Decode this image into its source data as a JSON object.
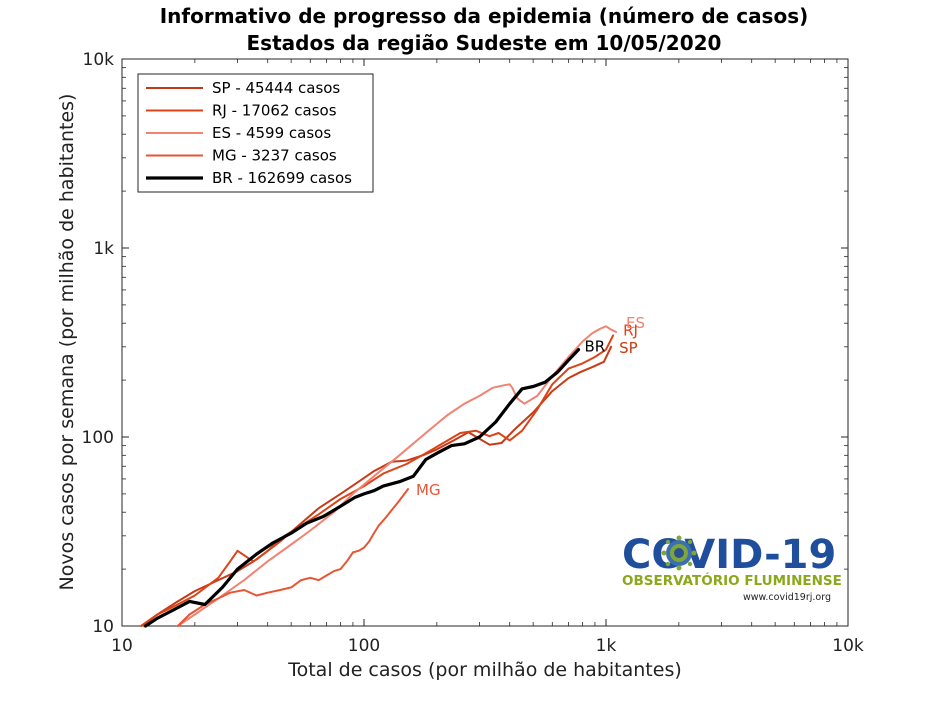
{
  "chart_data": {
    "type": "line",
    "title": "Informativo de progresso da epidemia (número de casos)",
    "subtitle": "Estados da região Sudeste em 10/05/2020",
    "xlabel": "Total de casos (por milhão de habitantes)",
    "ylabel": "Novos casos por semana (por milhão de habitantes)",
    "xscale": "log",
    "yscale": "log",
    "xlim": [
      10,
      10000
    ],
    "ylim": [
      10,
      10000
    ],
    "xticks": [
      10,
      100,
      1000,
      10000
    ],
    "xtick_labels": [
      "10",
      "100",
      "1k",
      "10k"
    ],
    "yticks": [
      10,
      100,
      1000,
      10000
    ],
    "ytick_labels": [
      "10",
      "100",
      "1k",
      "10k"
    ],
    "grid": false,
    "legend_position": "top-left",
    "series": [
      {
        "name": "SP - 45444 casos",
        "end_label": "SP",
        "color": "#c63b16",
        "points": [
          [
            12,
            10
          ],
          [
            14,
            11.5
          ],
          [
            17,
            13.5
          ],
          [
            20,
            15.3
          ],
          [
            25,
            17.5
          ],
          [
            30,
            19.5
          ],
          [
            36,
            22.5
          ],
          [
            45,
            28
          ],
          [
            55,
            35
          ],
          [
            65,
            42
          ],
          [
            80,
            50
          ],
          [
            95,
            58
          ],
          [
            110,
            66
          ],
          [
            130,
            74
          ],
          [
            150,
            75
          ],
          [
            175,
            80
          ],
          [
            200,
            86
          ],
          [
            235,
            96
          ],
          [
            270,
            106
          ],
          [
            300,
            98
          ],
          [
            330,
            91
          ],
          [
            370,
            93
          ],
          [
            420,
            110
          ],
          [
            500,
            135
          ],
          [
            600,
            175
          ],
          [
            700,
            205
          ],
          [
            780,
            220
          ],
          [
            880,
            235
          ],
          [
            980,
            250
          ],
          [
            1050,
            300
          ]
        ]
      },
      {
        "name": "RJ - 17062 casos",
        "end_label": "RJ",
        "color": "#dc4418",
        "points": [
          [
            12,
            10
          ],
          [
            14,
            11.5
          ],
          [
            16,
            12.5
          ],
          [
            20,
            14.5
          ],
          [
            25,
            18
          ],
          [
            28,
            22
          ],
          [
            30,
            25
          ],
          [
            33,
            23
          ],
          [
            35,
            22
          ],
          [
            40,
            25
          ],
          [
            47,
            30
          ],
          [
            55,
            34
          ],
          [
            65,
            39
          ],
          [
            80,
            47
          ],
          [
            100,
            55
          ],
          [
            120,
            64
          ],
          [
            150,
            72
          ],
          [
            180,
            82
          ],
          [
            210,
            92
          ],
          [
            250,
            105
          ],
          [
            290,
            108
          ],
          [
            330,
            101
          ],
          [
            360,
            105
          ],
          [
            400,
            96
          ],
          [
            450,
            108
          ],
          [
            520,
            140
          ],
          [
            600,
            190
          ],
          [
            700,
            230
          ],
          [
            800,
            245
          ],
          [
            900,
            265
          ],
          [
            1000,
            290
          ],
          [
            1070,
            345
          ]
        ]
      },
      {
        "name": "ES - 4599 casos",
        "end_label": "ES",
        "color": "#f08372",
        "points": [
          [
            17,
            10
          ],
          [
            20,
            11.5
          ],
          [
            25,
            14
          ],
          [
            32,
            17.5
          ],
          [
            40,
            22
          ],
          [
            50,
            27
          ],
          [
            60,
            32
          ],
          [
            75,
            40
          ],
          [
            90,
            50
          ],
          [
            110,
            62
          ],
          [
            140,
            80
          ],
          [
            180,
            105
          ],
          [
            220,
            130
          ],
          [
            260,
            150
          ],
          [
            300,
            165
          ],
          [
            340,
            182
          ],
          [
            380,
            188
          ],
          [
            400,
            190
          ],
          [
            410,
            182
          ],
          [
            430,
            160
          ],
          [
            460,
            150
          ],
          [
            520,
            165
          ],
          [
            600,
            210
          ],
          [
            700,
            265
          ],
          [
            800,
            320
          ],
          [
            880,
            355
          ],
          [
            950,
            375
          ],
          [
            1000,
            385
          ],
          [
            1050,
            370
          ],
          [
            1100,
            360
          ]
        ]
      },
      {
        "name": "MG - 3237 casos",
        "end_label": "MG",
        "color": "#e85535",
        "points": [
          [
            17,
            10
          ],
          [
            19,
            11.5
          ],
          [
            22,
            13
          ],
          [
            25,
            14
          ],
          [
            28,
            15
          ],
          [
            32,
            15.5
          ],
          [
            36,
            14.5
          ],
          [
            40,
            15
          ],
          [
            45,
            15.5
          ],
          [
            50,
            16
          ],
          [
            55,
            17.5
          ],
          [
            60,
            18
          ],
          [
            65,
            17.5
          ],
          [
            70,
            18.5
          ],
          [
            75,
            19.5
          ],
          [
            80,
            20
          ],
          [
            85,
            22
          ],
          [
            90,
            24.5
          ],
          [
            95,
            25
          ],
          [
            100,
            26
          ],
          [
            105,
            28
          ],
          [
            110,
            31
          ],
          [
            115,
            34
          ],
          [
            122,
            37
          ],
          [
            130,
            41
          ],
          [
            138,
            45
          ],
          [
            145,
            49
          ],
          [
            152,
            53
          ]
        ]
      },
      {
        "name": "BR - 162699 casos",
        "end_label": "BR",
        "color": "#000000",
        "points": [
          [
            12.5,
            10
          ],
          [
            14,
            11
          ],
          [
            16,
            12
          ],
          [
            19,
            13.5
          ],
          [
            22,
            13
          ],
          [
            26,
            16
          ],
          [
            30,
            20
          ],
          [
            36,
            24
          ],
          [
            42,
            27.5
          ],
          [
            50,
            31
          ],
          [
            58,
            35
          ],
          [
            68,
            38
          ],
          [
            80,
            43
          ],
          [
            92,
            48
          ],
          [
            100,
            50
          ],
          [
            110,
            52
          ],
          [
            120,
            55
          ],
          [
            140,
            58
          ],
          [
            160,
            62
          ],
          [
            180,
            76
          ],
          [
            200,
            82
          ],
          [
            230,
            90
          ],
          [
            260,
            92
          ],
          [
            300,
            100
          ],
          [
            350,
            120
          ],
          [
            400,
            150
          ],
          [
            450,
            180
          ],
          [
            500,
            185
          ],
          [
            560,
            195
          ],
          [
            630,
            220
          ],
          [
            700,
            255
          ],
          [
            770,
            290
          ]
        ]
      }
    ]
  },
  "logo": {
    "title": "COVID-19",
    "subtitle": "OBSERVATÓRIO FLUMINENSE",
    "url": "www.covid19rj.org"
  }
}
